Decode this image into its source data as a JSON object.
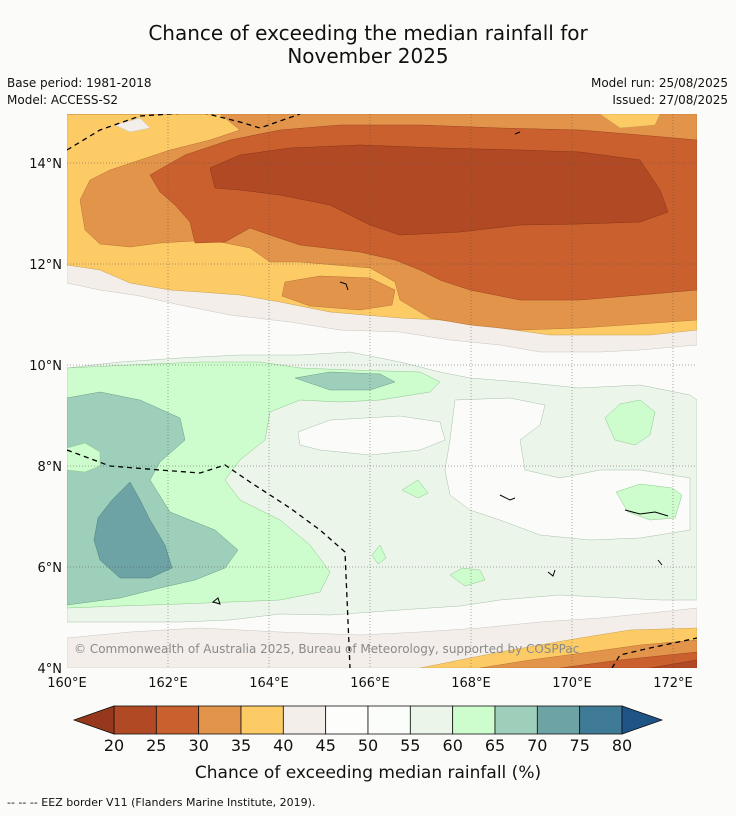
{
  "title_line1": "Chance of exceeding the median rainfall for",
  "title_line2": "November 2025",
  "meta": {
    "base_period": "Base period: 1981-2018",
    "model": "Model: ACCESS-S2",
    "model_run": "Model run: 25/08/2025",
    "issued": "Issued: 27/08/2025"
  },
  "map": {
    "lon_range": [
      160,
      172.5
    ],
    "lat_range": [
      4,
      15
    ],
    "lon_ticks": [
      "160°E",
      "162°E",
      "164°E",
      "166°E",
      "168°E",
      "170°E",
      "172°E"
    ],
    "lat_ticks": [
      "4°N",
      "6°N",
      "8°N",
      "10°N",
      "12°N",
      "14°N"
    ],
    "gridlines": true
  },
  "copyright": "© Commonwealth of Australia 2025, Bureau of Meteorology, supported by COSPPac",
  "colorbar": {
    "label": "Chance of exceeding median rainfall (%)",
    "ticks": [
      "20",
      "25",
      "30",
      "35",
      "40",
      "45",
      "50",
      "55",
      "60",
      "65",
      "70",
      "75",
      "80"
    ],
    "colors": [
      "#b14a24",
      "#c9602e",
      "#e2944a",
      "#fdcb66",
      "#f3eeea",
      "#fdfdfb",
      "#fbfdfb",
      "#ebf5ea",
      "#cdfdcd",
      "#9dcfba",
      "#6da3a4",
      "#3f7a96"
    ],
    "low_color": "#97381c",
    "high_color": "#1f5487"
  },
  "footer": "--  --  -- EEZ border V11 (Flanders Marine Institute, 2019)."
}
